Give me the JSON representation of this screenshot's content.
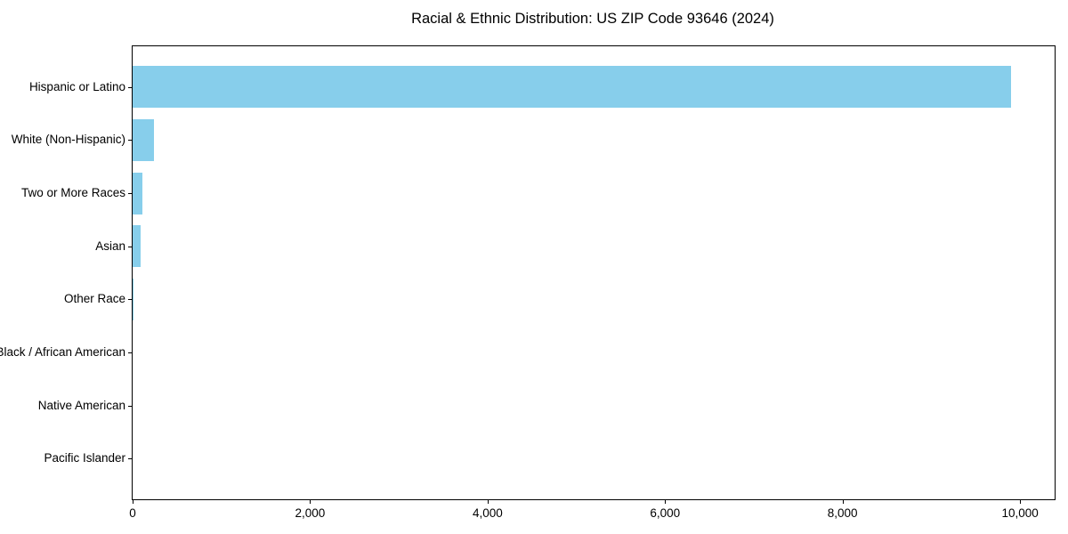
{
  "chart_data": {
    "type": "bar",
    "orientation": "horizontal",
    "title": "Racial & Ethnic Distribution: US ZIP Code 93646 (2024)",
    "categories": [
      "Hispanic or Latino",
      "White (Non-Hispanic)",
      "Two or More Races",
      "Asian",
      "Other Race",
      "Black / African American",
      "Native American",
      "Pacific Islander"
    ],
    "values": [
      9900,
      240,
      115,
      90,
      15,
      0,
      0,
      0
    ],
    "xlabel": "",
    "ylabel": "",
    "xlim": [
      0,
      10390
    ],
    "x_ticks": [
      0,
      2000,
      4000,
      6000,
      8000,
      10000
    ],
    "x_tick_labels": [
      "0",
      "2,000",
      "4,000",
      "6,000",
      "8,000",
      "10,000"
    ],
    "grid": false,
    "legend": false,
    "bar_color": "#87CEEB",
    "background_color": "#ffffff",
    "spine_color": "#000000",
    "text_color": "#000000"
  }
}
